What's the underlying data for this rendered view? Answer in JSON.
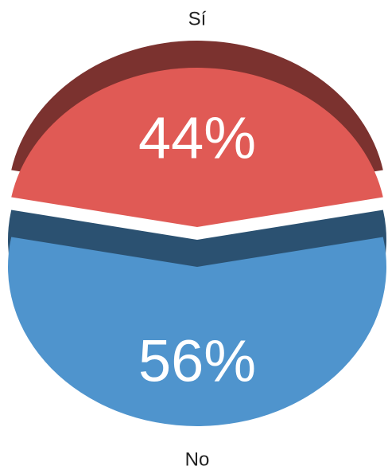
{
  "chart_data": {
    "type": "pie",
    "categories": [
      "Sí",
      "No"
    ],
    "values": [
      44,
      56
    ],
    "value_labels": [
      "44%",
      "56%"
    ],
    "colors": [
      "#e05a55",
      "#4f94cd"
    ]
  }
}
